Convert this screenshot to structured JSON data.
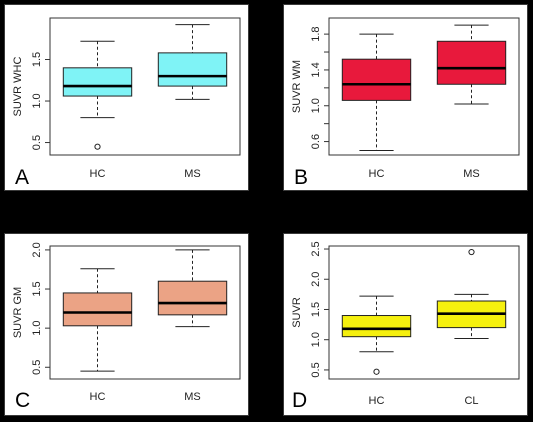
{
  "chart_data": [
    {
      "panel_label": "A",
      "type": "box",
      "ylabel": "SUVR WHC",
      "ylim": [
        0.35,
        2.0
      ],
      "yticks": [
        0.5,
        1.0,
        1.5
      ],
      "ytick_labels": [
        "0.5",
        "1.0",
        "1.5"
      ],
      "categories": [
        "HC",
        "MS"
      ],
      "fill_color": "#7ff3f6",
      "boxes": [
        {
          "category": "HC",
          "whisker_low": 0.8,
          "q1": 1.06,
          "median": 1.18,
          "q3": 1.4,
          "whisker_high": 1.72,
          "outliers": [
            0.45
          ]
        },
        {
          "category": "MS",
          "whisker_low": 1.02,
          "q1": 1.18,
          "median": 1.3,
          "q3": 1.58,
          "whisker_high": 1.92,
          "outliers": []
        }
      ]
    },
    {
      "panel_label": "B",
      "type": "box",
      "ylabel": "SUVR WM",
      "ylim": [
        0.45,
        1.98
      ],
      "yticks": [
        0.6,
        0.8,
        1.0,
        1.2,
        1.4,
        1.6,
        1.8
      ],
      "ytick_labels": [
        "0.6",
        "",
        "1.0",
        "",
        "1.4",
        "",
        "1.8"
      ],
      "categories": [
        "HC",
        "MS"
      ],
      "fill_color": "#e8193c",
      "boxes": [
        {
          "category": "HC",
          "whisker_low": 0.5,
          "q1": 1.06,
          "median": 1.24,
          "q3": 1.52,
          "whisker_high": 1.8,
          "outliers": []
        },
        {
          "category": "MS",
          "whisker_low": 1.02,
          "q1": 1.24,
          "median": 1.42,
          "q3": 1.72,
          "whisker_high": 1.9,
          "outliers": []
        }
      ]
    },
    {
      "panel_label": "C",
      "type": "box",
      "ylabel": "SUVR GM",
      "ylim": [
        0.35,
        2.05
      ],
      "yticks": [
        0.5,
        1.0,
        1.5,
        2.0
      ],
      "ytick_labels": [
        "0.5",
        "1.0",
        "1.5",
        "2.0"
      ],
      "categories": [
        "HC",
        "MS"
      ],
      "fill_color": "#eba385",
      "boxes": [
        {
          "category": "HC",
          "whisker_low": 0.45,
          "q1": 1.03,
          "median": 1.2,
          "q3": 1.45,
          "whisker_high": 1.76,
          "outliers": []
        },
        {
          "category": "MS",
          "whisker_low": 1.02,
          "q1": 1.17,
          "median": 1.32,
          "q3": 1.6,
          "whisker_high": 2.0,
          "outliers": []
        }
      ]
    },
    {
      "panel_label": "D",
      "type": "box",
      "ylabel": "SUVR",
      "ylim": [
        0.35,
        2.55
      ],
      "yticks": [
        0.5,
        1.0,
        1.5,
        2.0,
        2.5
      ],
      "ytick_labels": [
        "0.5",
        "1.0",
        "1.5",
        "2.0",
        "2.5"
      ],
      "categories": [
        "HC",
        "CL"
      ],
      "fill_color": "#f5f00e",
      "boxes": [
        {
          "category": "HC",
          "whisker_low": 0.8,
          "q1": 1.05,
          "median": 1.18,
          "q3": 1.4,
          "whisker_high": 1.72,
          "outliers": [
            0.47
          ]
        },
        {
          "category": "CL",
          "whisker_low": 1.02,
          "q1": 1.2,
          "median": 1.43,
          "q3": 1.64,
          "whisker_high": 1.75,
          "outliers": [
            2.45
          ]
        }
      ]
    }
  ]
}
